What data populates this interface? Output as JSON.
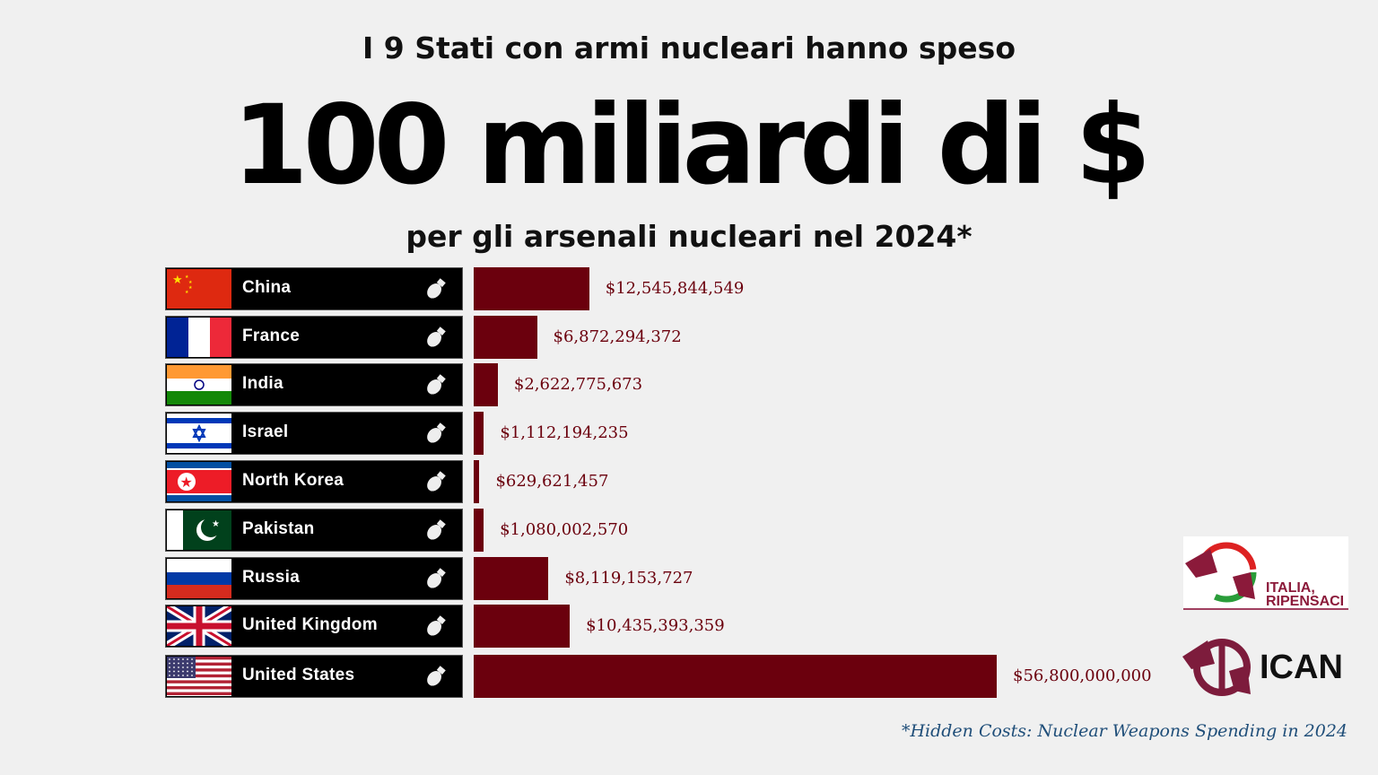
{
  "header": {
    "line1": "I 9 Stati con armi nucleari hanno speso",
    "line2": "100 miliardi di $",
    "line3": "per gli arsenali nucleari nel 2024*"
  },
  "chart_data": {
    "type": "bar",
    "orientation": "horizontal",
    "title": "100 miliardi di $",
    "categories": [
      "China",
      "France",
      "India",
      "Israel",
      "North Korea",
      "Pakistan",
      "Russia",
      "United Kingdom",
      "United States"
    ],
    "values": [
      12545844549,
      6872294372,
      2622775673,
      1112194235,
      629621457,
      1080002570,
      8119153727,
      10435393359,
      56800000000
    ],
    "value_labels": [
      "$12,545,844,549",
      "$6,872,294,372",
      "$2,622,775,673",
      "$1,112,194,235",
      "$629,621,457",
      "$1,080,002,570",
      "$8,119,153,727",
      "$10,435,393,359",
      "$56,800,000,000"
    ],
    "flags": [
      "china",
      "france",
      "india",
      "israel",
      "north-korea",
      "pakistan",
      "russia",
      "united-kingdom",
      "united-states"
    ],
    "icon": "bomb-icon",
    "bar_color": "#6b000d",
    "grid": false
  },
  "footnote": "*Hidden Costs: Nuclear Weapons Spending in 2024",
  "logos": {
    "italia": "ITALIA, RIPENSACI",
    "ican": "ICAN"
  }
}
